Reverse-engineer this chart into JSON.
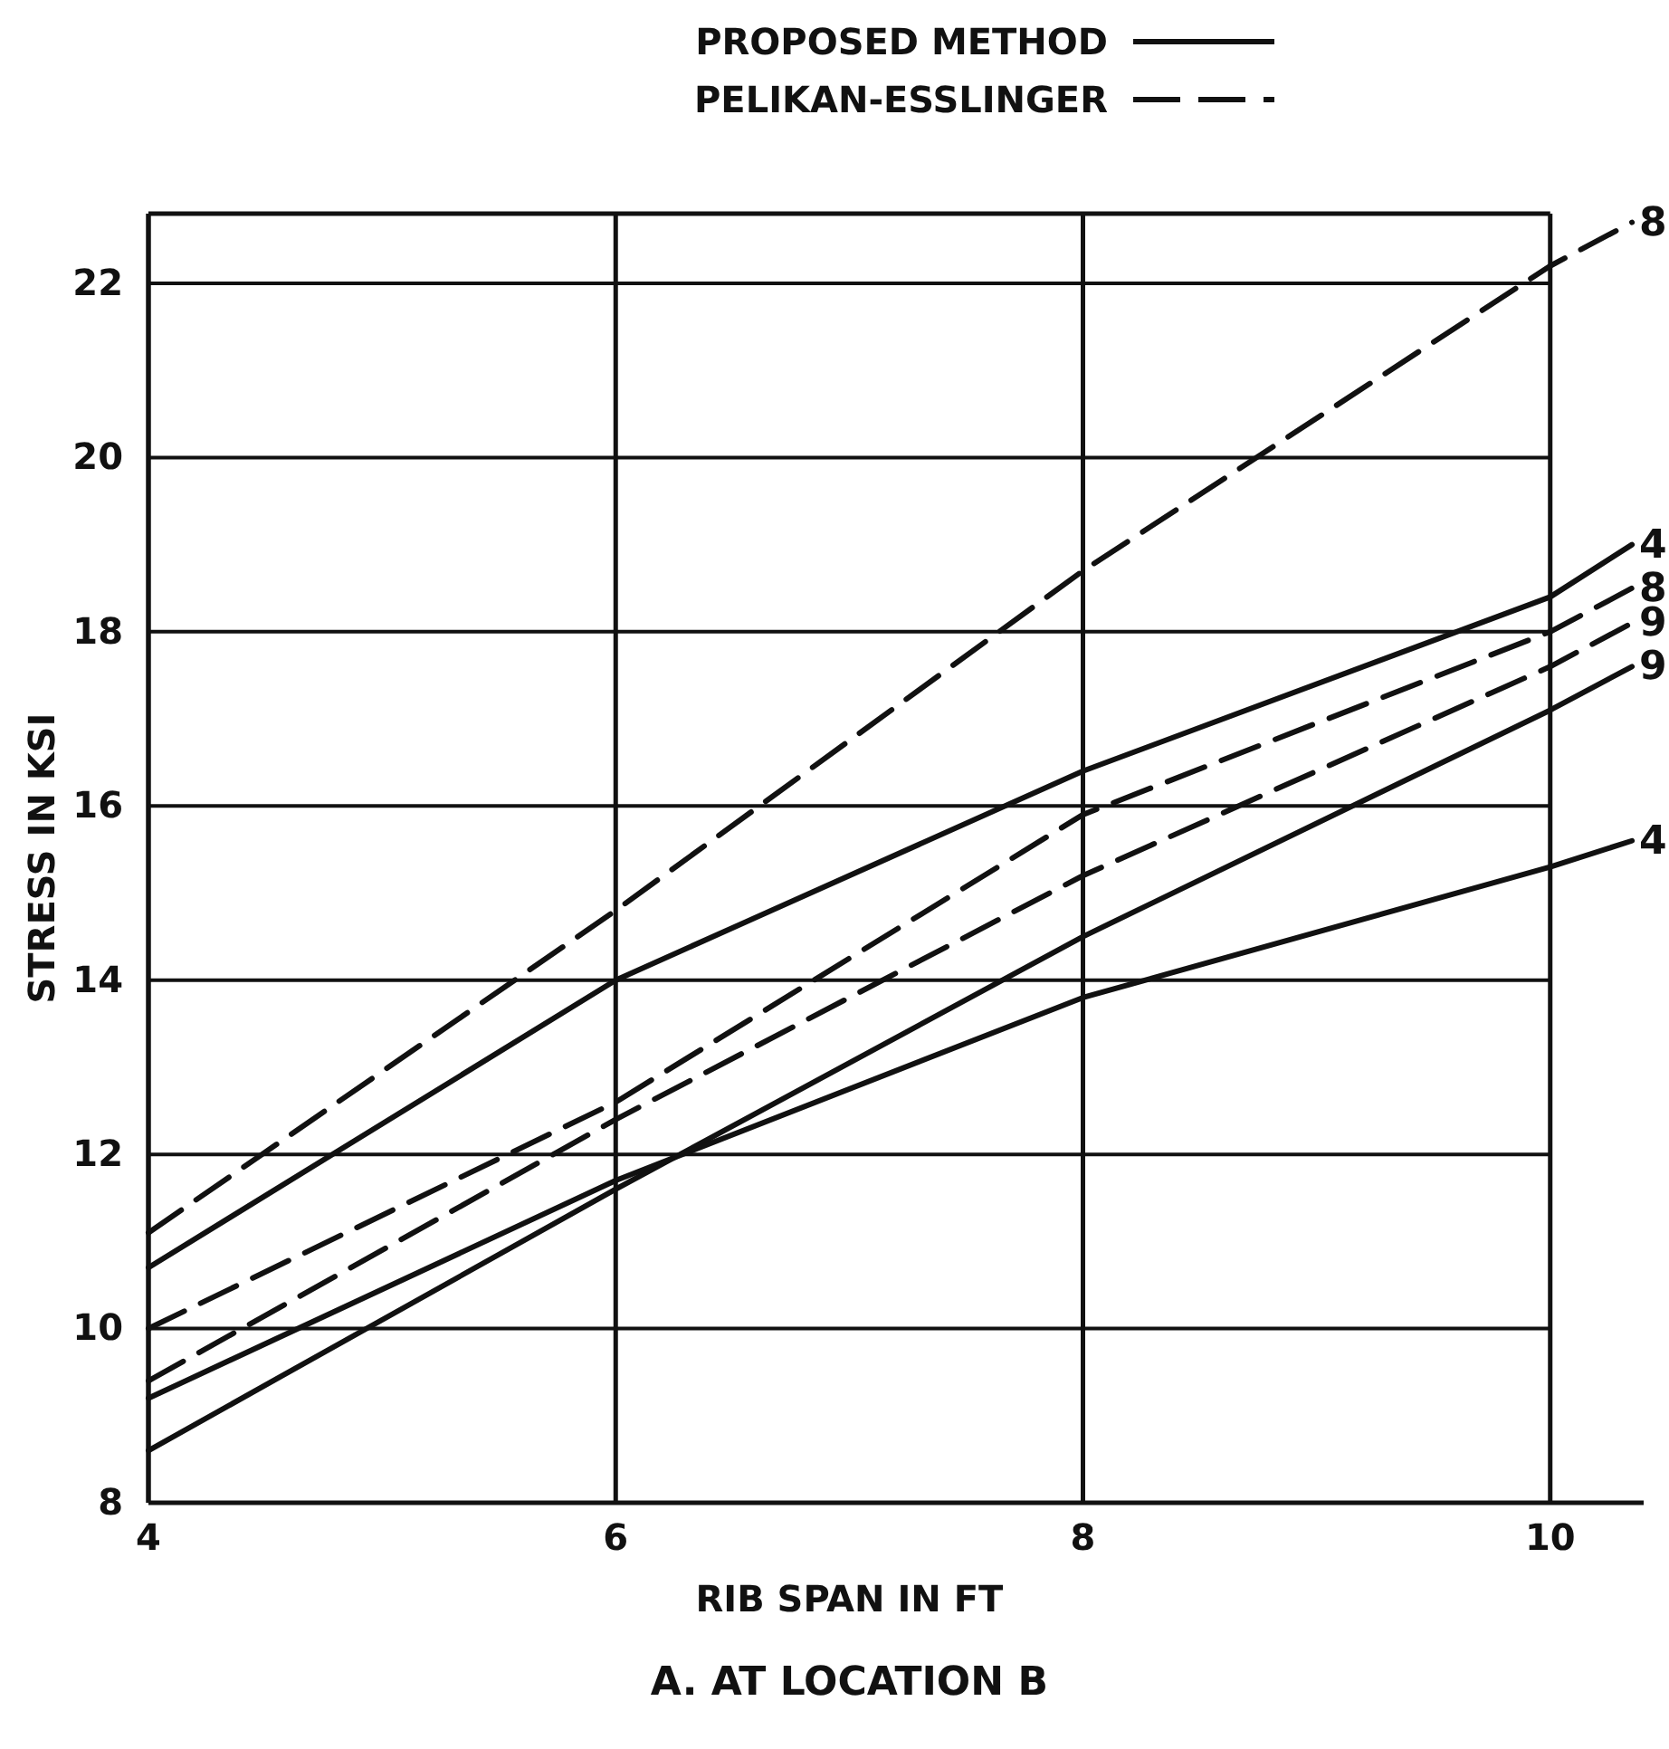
{
  "chart_data": {
    "type": "line",
    "title": "A. AT LOCATION B",
    "xlabel": "RIB SPAN IN FT",
    "ylabel": "STRESS IN KSI",
    "xlim": [
      4,
      10.4
    ],
    "xticks": [
      4,
      6,
      8,
      10
    ],
    "ylim": [
      8,
      22.8
    ],
    "yticks": [
      8,
      10,
      12,
      14,
      16,
      18,
      20,
      22
    ],
    "grid": true,
    "legend": "top right",
    "marker": "none",
    "series": [
      {
        "name": "4",
        "color": "#111111",
        "line_style": "solid",
        "x": [
          4,
          6,
          8,
          10,
          10.35
        ],
        "values": [
          10.7,
          14.0,
          16.4,
          18.4,
          19.0
        ]
      },
      {
        "name": "8",
        "color": "#111111",
        "line_style": "dashed",
        "x": [
          4,
          6,
          8,
          10,
          10.35
        ],
        "values": [
          11.1,
          14.8,
          18.7,
          22.2,
          22.7
        ]
      },
      {
        "name": "8",
        "color": "#111111",
        "line_style": "dashed",
        "x": [
          4,
          6,
          8,
          10,
          10.35
        ],
        "values": [
          10.0,
          12.6,
          15.9,
          18.0,
          18.5
        ]
      },
      {
        "name": "9",
        "color": "#111111",
        "line_style": "dashed",
        "x": [
          4,
          6,
          8,
          10,
          10.35
        ],
        "values": [
          9.4,
          12.4,
          15.2,
          17.6,
          18.1
        ]
      },
      {
        "name": "9",
        "color": "#111111",
        "line_style": "solid",
        "x": [
          4,
          6,
          8,
          10,
          10.35
        ],
        "values": [
          8.6,
          11.6,
          14.5,
          17.1,
          17.6
        ]
      },
      {
        "name": "4",
        "color": "#111111",
        "line_style": "solid",
        "x": [
          4,
          6,
          8,
          10,
          10.35
        ],
        "values": [
          9.2,
          11.7,
          13.8,
          15.3,
          15.6
        ]
      }
    ],
    "annotations": [
      "PROPOSED METHOD",
      "PELIKAN-ESSLINGER"
    ]
  }
}
